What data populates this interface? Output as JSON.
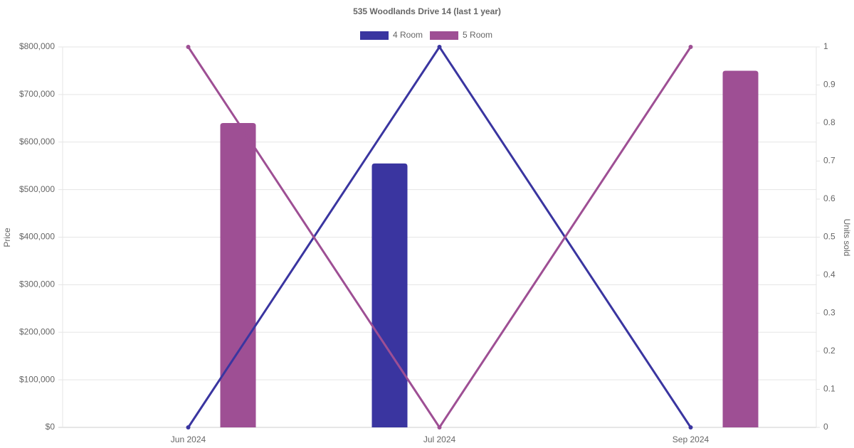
{
  "chart_data": {
    "type": "bar-line",
    "title": "535 Woodlands Drive 14 (last 1 year)",
    "y_label": "Price",
    "y2_label": "Units sold",
    "categories": [
      "Jun 2024",
      "Jul 2024",
      "Sep 2024"
    ],
    "series": [
      {
        "name": "4 Room",
        "color": "#3a35a0",
        "values": [
          null,
          555000,
          null
        ],
        "units_sold": [
          0,
          1,
          0
        ],
        "units_axis": "y2"
      },
      {
        "name": "5 Room",
        "color": "#9e4f94",
        "values": [
          640000,
          null,
          750000
        ],
        "units_sold": [
          1,
          0,
          1
        ],
        "units_axis": "y2"
      }
    ],
    "ylim": [
      0,
      800000
    ],
    "yticks": [
      {
        "value": 0,
        "label": "$0"
      },
      {
        "value": 100000,
        "label": "$100,000"
      },
      {
        "value": 200000,
        "label": "$200,000"
      },
      {
        "value": 300000,
        "label": "$300,000"
      },
      {
        "value": 400000,
        "label": "$400,000"
      },
      {
        "value": 500000,
        "label": "$500,000"
      },
      {
        "value": 600000,
        "label": "$600,000"
      },
      {
        "value": 700000,
        "label": "$700,000"
      },
      {
        "value": 800000,
        "label": "$800,000"
      }
    ],
    "y2lim": [
      0,
      1
    ],
    "y2ticks": [
      0,
      0.1,
      0.2,
      0.3,
      0.4,
      0.5,
      0.6,
      0.7,
      0.8,
      0.9,
      1
    ],
    "grid": true,
    "legend": "top"
  }
}
